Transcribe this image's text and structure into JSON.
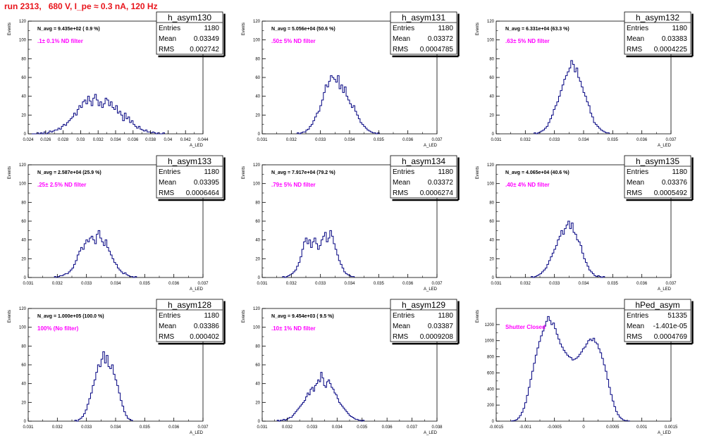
{
  "header": {
    "run_title": "run 2313,   680 V, I_pe ≈ 0.3 nA, 120 Hz"
  },
  "style": {
    "hist_color": "#000080",
    "filter_label_color": "#ff00ff",
    "title_color": "#e8141b",
    "axis_color": "#000000"
  },
  "axes": {
    "ylabel": "Events",
    "xlabel": "A_LED"
  },
  "stats_labels": {
    "entries": "Entries",
    "mean": "Mean",
    "rms": "RMS"
  },
  "chart_data": [
    {
      "type": "bar",
      "name": "h_asym130",
      "navg": "N_avg = 9.435e+02 ( 0.9 %)",
      "filter": ".1± 0.1% ND filter",
      "entries": "1180",
      "mean": "0.03349",
      "rms": "0.002742",
      "xlim": [
        0.024,
        0.044
      ],
      "ylim": [
        0,
        120
      ],
      "xticks": [
        0.024,
        0.026,
        0.028,
        0.03,
        0.032,
        0.034,
        0.036,
        0.038,
        0.04,
        0.042,
        0.044
      ],
      "xtick_labels": [
        "0.024",
        "0.026",
        "0.028",
        "0.03",
        "0.032",
        "0.034",
        "0.036",
        "0.038",
        "0.04",
        "0.042",
        "0.044"
      ],
      "yticks": [
        0,
        20,
        40,
        60,
        80,
        100,
        120
      ],
      "bins": {
        "start": 0.0244,
        "width": 0.0002,
        "values": [
          0,
          0,
          0,
          1,
          0,
          1,
          0,
          2,
          0,
          1,
          3,
          2,
          3,
          4,
          4,
          6,
          5,
          8,
          10,
          9,
          12,
          14,
          16,
          18,
          22,
          20,
          26,
          30,
          28,
          34,
          36,
          32,
          40,
          35,
          30,
          38,
          42,
          36,
          30,
          34,
          28,
          32,
          38,
          36,
          30,
          34,
          28,
          26,
          30,
          22,
          24,
          20,
          14,
          22,
          16,
          18,
          12,
          14,
          10,
          8,
          6,
          8,
          5,
          4,
          3,
          4,
          2,
          2,
          1,
          2,
          1,
          0,
          1,
          0,
          0,
          1
        ]
      }
    },
    {
      "type": "bar",
      "name": "h_asym131",
      "navg": "N_avg = 5.056e+04 (50.6 %)",
      "filter": ".50± 5% ND filter",
      "entries": "1180",
      "mean": "0.03372",
      "rms": "0.0004785",
      "xlim": [
        0.031,
        0.037
      ],
      "ylim": [
        0,
        120
      ],
      "xticks": [
        0.031,
        0.032,
        0.033,
        0.034,
        0.035,
        0.036,
        0.037
      ],
      "xtick_labels": [
        "0.031",
        "0.032",
        "0.033",
        "0.034",
        "0.035",
        "0.036",
        "0.037"
      ],
      "yticks": [
        0,
        20,
        40,
        60,
        80,
        100,
        120
      ],
      "bins": {
        "start": 0.0322,
        "width": 6e-05,
        "values": [
          1,
          0,
          1,
          2,
          2,
          4,
          5,
          8,
          10,
          14,
          18,
          22,
          24,
          30,
          36,
          44,
          52,
          50,
          56,
          62,
          60,
          58,
          55,
          62,
          48,
          52,
          44,
          50,
          40,
          36,
          32,
          28,
          30,
          24,
          20,
          16,
          12,
          10,
          8,
          6,
          4,
          3,
          2,
          1,
          1,
          0,
          1
        ]
      }
    },
    {
      "type": "bar",
      "name": "h_asym132",
      "navg": "N_avg = 6.331e+04 (63.3 %)",
      "filter": ".63± 5% ND filter",
      "entries": "1180",
      "mean": "0.03383",
      "rms": "0.0004225",
      "xlim": [
        0.031,
        0.037
      ],
      "ylim": [
        0,
        120
      ],
      "xticks": [
        0.031,
        0.032,
        0.033,
        0.034,
        0.035,
        0.036,
        0.037
      ],
      "xtick_labels": [
        "0.031",
        "0.032",
        "0.033",
        "0.034",
        "0.035",
        "0.036",
        "0.037"
      ],
      "yticks": [
        0,
        20,
        40,
        60,
        80,
        100,
        120
      ],
      "bins": {
        "start": 0.0323,
        "width": 6e-05,
        "values": [
          1,
          0,
          1,
          2,
          3,
          4,
          6,
          8,
          12,
          16,
          20,
          26,
          30,
          34,
          40,
          46,
          52,
          58,
          62,
          66,
          70,
          78,
          74,
          66,
          70,
          60,
          56,
          50,
          44,
          40,
          34,
          30,
          22,
          18,
          12,
          10,
          8,
          6,
          4,
          3,
          2,
          1,
          1
        ]
      }
    },
    {
      "type": "bar",
      "name": "h_asym133",
      "navg": "N_avg = 2.587e+04 (25.9 %)",
      "filter": ".25± 2.5% ND filter",
      "entries": "1180",
      "mean": "0.03395",
      "rms": "0.0006464",
      "xlim": [
        0.031,
        0.037
      ],
      "ylim": [
        0,
        120
      ],
      "xticks": [
        0.031,
        0.032,
        0.033,
        0.034,
        0.035,
        0.036,
        0.037
      ],
      "xtick_labels": [
        "0.031",
        "0.032",
        "0.033",
        "0.034",
        "0.035",
        "0.036",
        "0.037"
      ],
      "yticks": [
        0,
        20,
        40,
        60,
        80,
        100,
        120
      ],
      "bins": {
        "start": 0.0319,
        "width": 6e-05,
        "values": [
          1,
          0,
          1,
          2,
          2,
          3,
          4,
          4,
          6,
          8,
          10,
          14,
          18,
          24,
          28,
          32,
          30,
          36,
          40,
          38,
          42,
          44,
          40,
          36,
          46,
          50,
          42,
          38,
          34,
          40,
          32,
          28,
          24,
          20,
          16,
          14,
          10,
          8,
          6,
          4,
          5,
          3,
          2,
          1,
          1,
          0,
          1
        ]
      }
    },
    {
      "type": "bar",
      "name": "h_asym134",
      "navg": "N_avg = 7.917e+04 (79.2 %)",
      "filter": ".79± 5% ND filter",
      "entries": "1180",
      "mean": "0.03372",
      "rms": "0.0006274",
      "xlim": [
        0.031,
        0.037
      ],
      "ylim": [
        0,
        120
      ],
      "xticks": [
        0.031,
        0.032,
        0.033,
        0.034,
        0.035,
        0.036,
        0.037
      ],
      "xtick_labels": [
        "0.031",
        "0.032",
        "0.033",
        "0.034",
        "0.035",
        "0.036",
        "0.037"
      ],
      "yticks": [
        0,
        20,
        40,
        60,
        80,
        100,
        120
      ],
      "bins": {
        "start": 0.0317,
        "width": 6e-05,
        "values": [
          1,
          0,
          1,
          2,
          3,
          4,
          6,
          8,
          12,
          16,
          22,
          30,
          38,
          42,
          36,
          40,
          32,
          38,
          42,
          36,
          30,
          34,
          40,
          44,
          48,
          38,
          42,
          50,
          44,
          36,
          30,
          24,
          18,
          14,
          10,
          6,
          4,
          3,
          2,
          1,
          1
        ]
      }
    },
    {
      "type": "bar",
      "name": "h_asym135",
      "navg": "N_avg = 4.065e+04 (40.6 %)",
      "filter": ".40± 4% ND filter",
      "entries": "1180",
      "mean": "0.03376",
      "rms": "0.0005492",
      "xlim": [
        0.031,
        0.037
      ],
      "ylim": [
        0,
        120
      ],
      "xticks": [
        0.031,
        0.032,
        0.033,
        0.034,
        0.035,
        0.036,
        0.037
      ],
      "xtick_labels": [
        "0.031",
        "0.032",
        "0.033",
        "0.034",
        "0.035",
        "0.036",
        "0.037"
      ],
      "yticks": [
        0,
        20,
        40,
        60,
        80,
        100,
        120
      ],
      "bins": {
        "start": 0.0322,
        "width": 6e-05,
        "values": [
          1,
          0,
          1,
          2,
          3,
          4,
          6,
          8,
          10,
          14,
          18,
          22,
          26,
          30,
          34,
          40,
          44,
          50,
          46,
          52,
          56,
          60,
          52,
          58,
          48,
          46,
          40,
          38,
          34,
          26,
          20,
          16,
          12,
          8,
          6,
          4,
          2,
          1,
          2,
          1,
          0,
          1
        ]
      }
    },
    {
      "type": "bar",
      "name": "h_asym128",
      "navg": "N_avg = 1.000e+05 (100.0 %)",
      "filter": "100% (No filter)",
      "entries": "1180",
      "mean": "0.03386",
      "rms": "0.000402",
      "xlim": [
        0.031,
        0.037
      ],
      "ylim": [
        0,
        120
      ],
      "xticks": [
        0.031,
        0.032,
        0.033,
        0.034,
        0.035,
        0.036,
        0.037
      ],
      "xtick_labels": [
        "0.031",
        "0.032",
        "0.033",
        "0.034",
        "0.035",
        "0.036",
        "0.037"
      ],
      "yticks": [
        0,
        20,
        40,
        60,
        80,
        100,
        120
      ],
      "bins": {
        "start": 0.0326,
        "width": 6e-05,
        "values": [
          1,
          0,
          2,
          3,
          5,
          8,
          12,
          18,
          24,
          30,
          38,
          44,
          52,
          60,
          58,
          66,
          74,
          62,
          70,
          58,
          56,
          60,
          50,
          44,
          38,
          30,
          22,
          16,
          10,
          6,
          3,
          2,
          1
        ]
      }
    },
    {
      "type": "bar",
      "name": "h_asym129",
      "navg": "N_avg = 9.454e+03 ( 9.5 %)",
      "filter": ".10± 1% ND filter",
      "entries": "1180",
      "mean": "0.03387",
      "rms": "0.0009208",
      "xlim": [
        0.031,
        0.038
      ],
      "ylim": [
        0,
        120
      ],
      "xticks": [
        0.031,
        0.032,
        0.033,
        0.034,
        0.035,
        0.036,
        0.037,
        0.038
      ],
      "xtick_labels": [
        "0.031",
        "0.032",
        "0.033",
        "0.034",
        "0.035",
        "0.036",
        "0.037",
        "0.038"
      ],
      "yticks": [
        0,
        20,
        40,
        60,
        80,
        100,
        120
      ],
      "bins": {
        "start": 0.0316,
        "width": 6e-05,
        "values": [
          1,
          0,
          1,
          1,
          2,
          1,
          2,
          3,
          4,
          4,
          6,
          8,
          10,
          12,
          14,
          16,
          18,
          20,
          22,
          26,
          30,
          28,
          34,
          36,
          32,
          38,
          40,
          44,
          42,
          52,
          46,
          38,
          36,
          42,
          44,
          40,
          36,
          34,
          30,
          28,
          24,
          20,
          18,
          16,
          14,
          12,
          10,
          8,
          6,
          5,
          4,
          3,
          2,
          2,
          1,
          1,
          0,
          1
        ]
      }
    },
    {
      "type": "bar",
      "name": "hPed_asym",
      "navg": "",
      "filter": "Shutter Closed",
      "entries": "51335",
      "mean": "-1.401e-05",
      "rms": "0.0004769",
      "xlim": [
        -0.0015,
        0.0015
      ],
      "ylim": [
        0,
        1400
      ],
      "xticks": [
        -0.0015,
        -0.001,
        -0.0005,
        0,
        0.0005,
        0.001,
        0.0015
      ],
      "xtick_labels": [
        "-0.0015",
        "-0.001",
        "-0.0005",
        "0",
        "0.0005",
        "0.001",
        "0.0015"
      ],
      "yticks": [
        0,
        200,
        400,
        600,
        800,
        1000,
        1200
      ],
      "bins": {
        "start": -0.00125,
        "width": 3e-05,
        "values": [
          2,
          5,
          10,
          20,
          40,
          70,
          110,
          160,
          230,
          320,
          420,
          520,
          620,
          720,
          820,
          910,
          990,
          1060,
          1120,
          1180,
          1240,
          1300,
          1250,
          1200,
          1220,
          1150,
          1080,
          1020,
          960,
          920,
          880,
          850,
          820,
          800,
          790,
          760,
          770,
          780,
          800,
          830,
          860,
          900,
          920,
          960,
          1000,
          1020,
          1000,
          1030,
          980,
          960,
          900,
          850,
          780,
          700,
          620,
          520,
          420,
          330,
          250,
          180,
          120,
          80,
          50,
          30,
          15,
          8,
          4,
          2
        ]
      }
    }
  ]
}
